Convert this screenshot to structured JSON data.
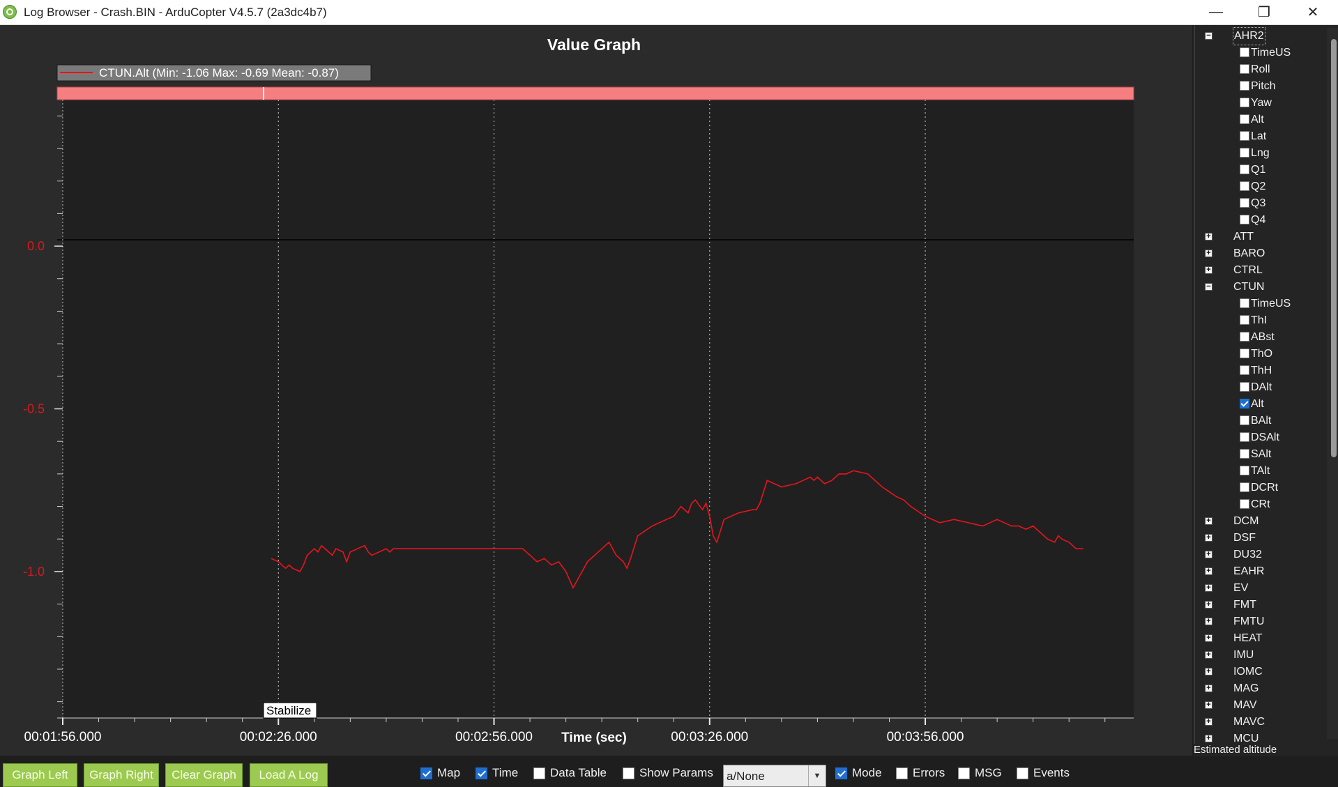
{
  "window": {
    "title": "Log Browser - Crash.BIN - ArduCopter V4.5.7 (2a3dc4b7)",
    "minimize_glyph": "—",
    "maximize_glyph": "❐",
    "close_glyph": "✕"
  },
  "graph": {
    "legend": "CTUN.Alt  (Min: -1.06 Max: -0.69 Mean: -0.87)",
    "mode_label": "Stabilize"
  },
  "chart_data": {
    "type": "line",
    "title": "Value Graph",
    "xlabel": "Time (sec)",
    "ylabel": "",
    "x_ticks": [
      "00:01:56.000",
      "00:02:26.000",
      "00:02:56.000",
      "00:03:26.000",
      "00:03:56.000"
    ],
    "y_ticks": [
      "0.0",
      "-0.5",
      "-1.0"
    ],
    "xlim_seconds": [
      116,
      265
    ],
    "ylim": [
      -1.45,
      0.45
    ],
    "grid": true,
    "legend_position": "top-left",
    "series": [
      {
        "name": "CTUN.Alt",
        "color": "#e8141c",
        "x_seconds": [
          145,
          146,
          147,
          147.5,
          148,
          149,
          149.5,
          150,
          151,
          151.5,
          152,
          153,
          153.5,
          154,
          155,
          155.5,
          156,
          157,
          158,
          158.5,
          159,
          160,
          161,
          161.5,
          162,
          163,
          164,
          165,
          170,
          175,
          180,
          182,
          183,
          184,
          185,
          186,
          187,
          188,
          188.5,
          189,
          190,
          191,
          192,
          193,
          194,
          194.5,
          195,
          196,
          198,
          200,
          201,
          202,
          203,
          203.5,
          204,
          205,
          205.5,
          206,
          206.5,
          207,
          208,
          210,
          212,
          212.5,
          213,
          214,
          215,
          216,
          218,
          219,
          220,
          220.5,
          221,
          222,
          223,
          224,
          225,
          226,
          228,
          230,
          232,
          233,
          234,
          236,
          238,
          240,
          242,
          244,
          246,
          248,
          249,
          250,
          251,
          252,
          253,
          254,
          254.5,
          255,
          256,
          257,
          258
        ],
        "values": [
          -0.96,
          -0.97,
          -0.99,
          -0.98,
          -0.99,
          -1.0,
          -0.98,
          -0.95,
          -0.93,
          -0.94,
          -0.92,
          -0.94,
          -0.95,
          -0.93,
          -0.94,
          -0.97,
          -0.94,
          -0.93,
          -0.92,
          -0.94,
          -0.95,
          -0.94,
          -0.93,
          -0.94,
          -0.93,
          -0.93,
          -0.93,
          -0.93,
          -0.93,
          -0.93,
          -0.93,
          -0.97,
          -0.96,
          -0.98,
          -0.97,
          -1.0,
          -1.05,
          -1.01,
          -0.99,
          -0.97,
          -0.95,
          -0.93,
          -0.91,
          -0.95,
          -0.97,
          -0.99,
          -0.96,
          -0.89,
          -0.86,
          -0.84,
          -0.83,
          -0.8,
          -0.82,
          -0.79,
          -0.78,
          -0.81,
          -0.79,
          -0.83,
          -0.89,
          -0.91,
          -0.84,
          -0.82,
          -0.81,
          -0.81,
          -0.79,
          -0.72,
          -0.73,
          -0.74,
          -0.73,
          -0.72,
          -0.71,
          -0.72,
          -0.71,
          -0.73,
          -0.72,
          -0.7,
          -0.7,
          -0.69,
          -0.7,
          -0.74,
          -0.77,
          -0.78,
          -0.8,
          -0.83,
          -0.85,
          -0.84,
          -0.85,
          -0.86,
          -0.84,
          -0.86,
          -0.86,
          -0.87,
          -0.86,
          -0.88,
          -0.9,
          -0.91,
          -0.89,
          -0.9,
          -0.91,
          -0.93,
          -0.93
        ]
      }
    ]
  },
  "tree": {
    "groups": [
      {
        "label": "AHR2",
        "expanded": true,
        "expander": "−",
        "children": [
          {
            "label": "TimeUS",
            "checked": false
          },
          {
            "label": "Roll",
            "checked": false
          },
          {
            "label": "Pitch",
            "checked": false
          },
          {
            "label": "Yaw",
            "checked": false
          },
          {
            "label": "Alt",
            "checked": false
          },
          {
            "label": "Lat",
            "checked": false
          },
          {
            "label": "Lng",
            "checked": false
          },
          {
            "label": "Q1",
            "checked": false
          },
          {
            "label": "Q2",
            "checked": false
          },
          {
            "label": "Q3",
            "checked": false
          },
          {
            "label": "Q4",
            "checked": false
          }
        ]
      },
      {
        "label": "ATT",
        "expanded": false,
        "expander": "+"
      },
      {
        "label": "BARO",
        "expanded": false,
        "expander": "+"
      },
      {
        "label": "CTRL",
        "expanded": false,
        "expander": "+"
      },
      {
        "label": "CTUN",
        "expanded": true,
        "expander": "−",
        "children": [
          {
            "label": "TimeUS",
            "checked": false
          },
          {
            "label": "ThI",
            "checked": false
          },
          {
            "label": "ABst",
            "checked": false
          },
          {
            "label": "ThO",
            "checked": false
          },
          {
            "label": "ThH",
            "checked": false
          },
          {
            "label": "DAlt",
            "checked": false
          },
          {
            "label": "Alt",
            "checked": true
          },
          {
            "label": "BAlt",
            "checked": false
          },
          {
            "label": "DSAlt",
            "checked": false
          },
          {
            "label": "SAlt",
            "checked": false
          },
          {
            "label": "TAlt",
            "checked": false
          },
          {
            "label": "DCRt",
            "checked": false
          },
          {
            "label": "CRt",
            "checked": false
          }
        ]
      },
      {
        "label": "DCM",
        "expanded": false,
        "expander": "+"
      },
      {
        "label": "DSF",
        "expanded": false,
        "expander": "+"
      },
      {
        "label": "DU32",
        "expanded": false,
        "expander": "+"
      },
      {
        "label": "EAHR",
        "expanded": false,
        "expander": "+"
      },
      {
        "label": "EV",
        "expanded": false,
        "expander": "+"
      },
      {
        "label": "FMT",
        "expanded": false,
        "expander": "+"
      },
      {
        "label": "FMTU",
        "expanded": false,
        "expander": "+"
      },
      {
        "label": "HEAT",
        "expanded": false,
        "expander": "+"
      },
      {
        "label": "IMU",
        "expanded": false,
        "expander": "+"
      },
      {
        "label": "IOMC",
        "expanded": false,
        "expander": "+"
      },
      {
        "label": "MAG",
        "expanded": false,
        "expander": "+"
      },
      {
        "label": "MAV",
        "expanded": false,
        "expander": "+"
      },
      {
        "label": "MAVC",
        "expanded": false,
        "expander": "+"
      },
      {
        "label": "MCU",
        "expanded": false,
        "expander": "+"
      }
    ],
    "status": "Estimated altitude"
  },
  "toolbar": {
    "graph_left": "Graph Left",
    "graph_right": "Graph Right",
    "clear_graph": "Clear Graph",
    "load_log": "Load A Log",
    "map": {
      "label": "Map",
      "checked": true
    },
    "time": {
      "label": "Time",
      "checked": true
    },
    "data_table": {
      "label": "Data Table",
      "checked": false
    },
    "show_params": {
      "label": "Show Params",
      "checked": false
    },
    "combo_value": "a/None",
    "combo_arrow": "▼",
    "mode": {
      "label": "Mode",
      "checked": true
    },
    "errors": {
      "label": "Errors",
      "checked": false
    },
    "msg": {
      "label": "MSG",
      "checked": false
    },
    "events": {
      "label": "Events",
      "checked": false
    }
  },
  "colors": {
    "series": "#e8141c",
    "legend_strip": "#f47e80",
    "y_tick_label": "#d8181c",
    "button": "#9cc94f"
  }
}
